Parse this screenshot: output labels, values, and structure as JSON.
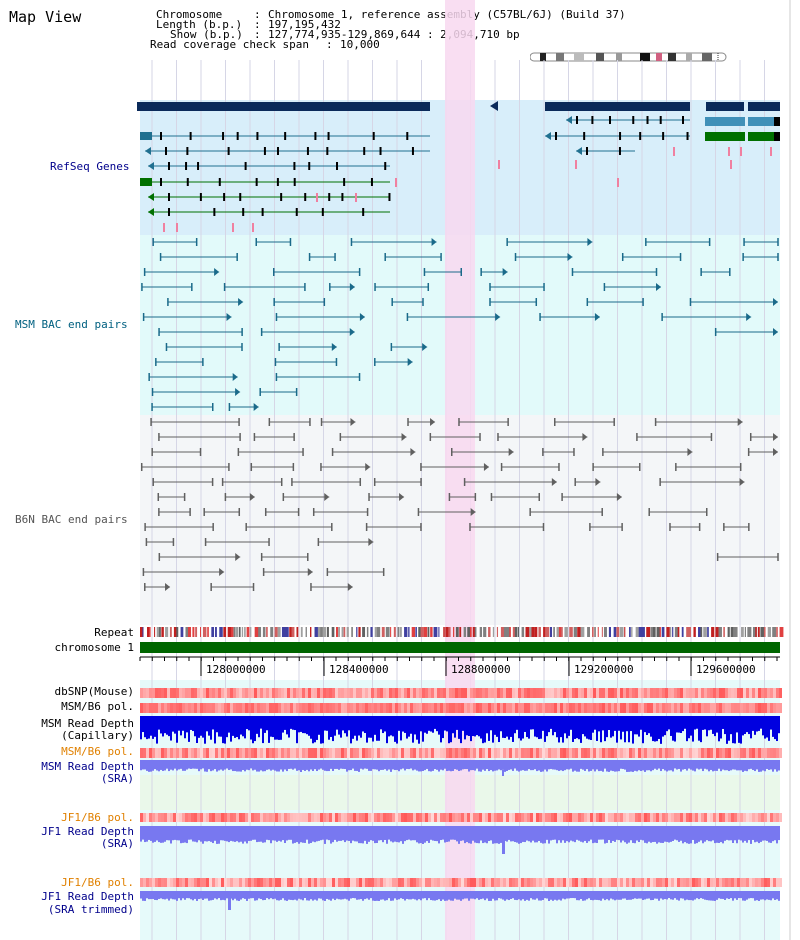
{
  "title": "Map View",
  "info": {
    "chromosome_key": "Chromosome",
    "chromosome_val": "Chromosome 1, reference assembly (C57BL/6J) (Build 37)",
    "length_key": "Length (b.p.)",
    "length_val": "197,195,432",
    "show_key": "Show (b.p.)",
    "show_val": "127,774,935-129,869,644 : 2,094,710 bp",
    "coverage_key": "Read coverage check span",
    "coverage_val": "10,000"
  },
  "tracks": {
    "refseq": "RefSeq Genes",
    "msm_bac": "MSM BAC end pairs",
    "b6n_bac": "B6N BAC end pairs",
    "repeat": "Repeat",
    "chromosome": "chromosome 1",
    "dbsnp": "dbSNP(Mouse)",
    "msm_b6_pol": "MSM/B6 pol.",
    "msm_read_cap_1": "MSM Read Depth",
    "msm_read_cap_2": "(Capillary)",
    "msm_b6_pol_sra": "MSM/B6 pol.",
    "msm_read_sra_1": "MSM Read Depth",
    "msm_read_sra_2": "(SRA)",
    "jf1_b6_pol": "JF1/B6 pol.",
    "jf1_read_sra_1": "JF1 Read Depth",
    "jf1_read_sra_2": "(SRA)",
    "jf1_b6_pol_trim": "JF1/B6 pol.",
    "jf1_read_trim_1": "JF1 Read Depth",
    "jf1_read_trim_2": "(SRA trimmed)"
  },
  "axis_ticks": [
    "128000000",
    "128400000",
    "128800000",
    "129200000",
    "129600000"
  ],
  "colors": {
    "refseq_bg": "#d8eefa",
    "msm_bg": "#e2fafa",
    "b6n_bg": "#f4f6f8",
    "highlight": "#f8d8f0",
    "dark_navy": "#0a2a5a",
    "msm_line": "#1a6a8a",
    "gene_green": "#007000",
    "chrom_green": "#006600",
    "depth_blue": "#0000e0",
    "sra_blue": "#7878f0",
    "label_navy": "#00008b",
    "label_teal": "#006080",
    "label_orange": "#e08000"
  }
}
